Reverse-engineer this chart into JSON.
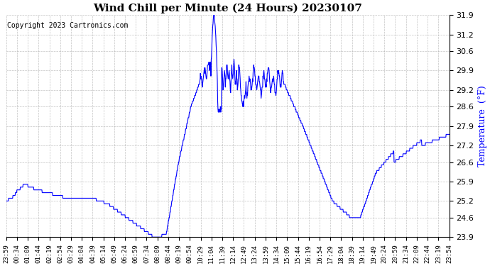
{
  "title": "Wind Chill per Minute (24 Hours) 20230107",
  "ylabel": "Temperature  (°F)",
  "copyright": "Copyright 2023 Cartronics.com",
  "line_color": "blue",
  "bg_color": "white",
  "ylim": [
    23.9,
    31.9
  ],
  "yticks": [
    23.9,
    24.6,
    25.2,
    25.9,
    26.6,
    27.2,
    27.9,
    28.6,
    29.2,
    29.9,
    30.6,
    31.2,
    31.9
  ],
  "xtick_labels": [
    "23:59",
    "00:34",
    "01:09",
    "01:44",
    "02:19",
    "02:54",
    "03:29",
    "04:04",
    "04:39",
    "05:14",
    "05:49",
    "06:24",
    "06:59",
    "07:34",
    "08:09",
    "08:44",
    "09:19",
    "09:54",
    "10:29",
    "11:04",
    "11:39",
    "12:14",
    "12:49",
    "13:24",
    "13:59",
    "14:34",
    "15:09",
    "15:44",
    "16:19",
    "16:54",
    "17:29",
    "18:04",
    "18:39",
    "19:14",
    "19:49",
    "20:24",
    "20:59",
    "21:34",
    "22:09",
    "22:44",
    "23:19",
    "23:54"
  ],
  "n_points": 1440
}
